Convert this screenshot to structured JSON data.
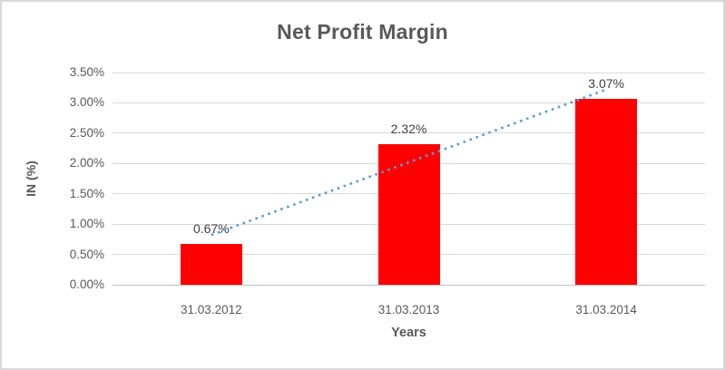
{
  "chart_data": {
    "type": "bar",
    "title": "Net Profit Margin",
    "categories": [
      "31.03.2012",
      "31.03.2013",
      "31.03.2014"
    ],
    "series": [
      {
        "name": "Net Profit Margin",
        "values": [
          0.67,
          2.32,
          3.07
        ]
      }
    ],
    "data_labels": [
      "0.67%",
      "2.32%",
      "3.07%"
    ],
    "xlabel": "Years",
    "ylabel": "IN (%)",
    "ylim": [
      0,
      3.5
    ],
    "ytick_step": 0.5,
    "ytick_labels": [
      "0.00%",
      "0.50%",
      "1.00%",
      "1.50%",
      "2.00%",
      "2.50%",
      "3.00%",
      "3.50%"
    ],
    "grid": true,
    "legend": "none",
    "trendline": {
      "type": "linear",
      "style": "dotted",
      "fit_values_pct": [
        0.82,
        3.22
      ]
    },
    "colors": {
      "bar": "#FF0000",
      "trendline": "#5B9BD5",
      "gridline": "#D9D9D9",
      "axis_line": "#BFBFBF",
      "tick_text": "#595959",
      "data_label_text": "#404040",
      "title_text": "#595959",
      "chart_border": "#D9D9D9",
      "background": "#FFFFFF"
    }
  }
}
